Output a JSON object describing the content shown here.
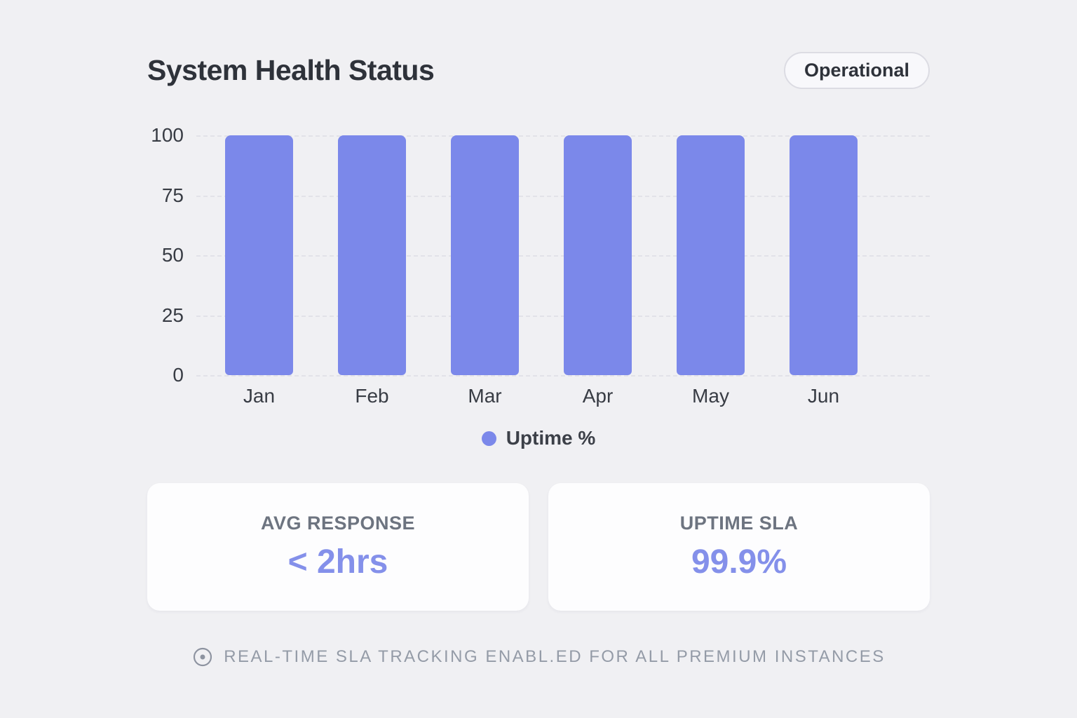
{
  "page": {
    "title": "System Health Status",
    "status_badge": "Operational"
  },
  "chart_data": {
    "type": "bar",
    "title": "System Health Status",
    "categories": [
      "Jan",
      "Feb",
      "Mar",
      "Apr",
      "May",
      "Jun"
    ],
    "series": [
      {
        "name": "Uptime %",
        "values": [
          100,
          100,
          100,
          100,
          100,
          100
        ]
      }
    ],
    "xlabel": "",
    "ylabel": "",
    "ylim": [
      0,
      100
    ],
    "yticks": [
      0,
      25,
      50,
      75,
      100
    ],
    "grid": "horizontal-dashed",
    "legend_position": "bottom",
    "bar_color": "#7b88ea"
  },
  "legend": {
    "label": "Uptime %",
    "dot_color": "#7b88ea"
  },
  "stats": [
    {
      "label": "AVG RESPONSE",
      "value": "< 2hrs"
    },
    {
      "label": "UPTIME SLA",
      "value": "99.9%"
    }
  ],
  "footer": {
    "icon": "live-indicator-icon",
    "text": "REAL-TIME SLA TRACKING ENABL.ED FOR ALL PREMIUM INSTANCES"
  },
  "colors": {
    "background": "#f0f0f3",
    "accent": "#7b88ea",
    "stat_value": "#8490ea",
    "title_text": "#2e323a",
    "axis_text": "#383c44",
    "muted_text": "#949ba7",
    "gridline": "#e2e2e8",
    "card_background": "#fdfdfe",
    "badge_border": "#dcdce3"
  }
}
